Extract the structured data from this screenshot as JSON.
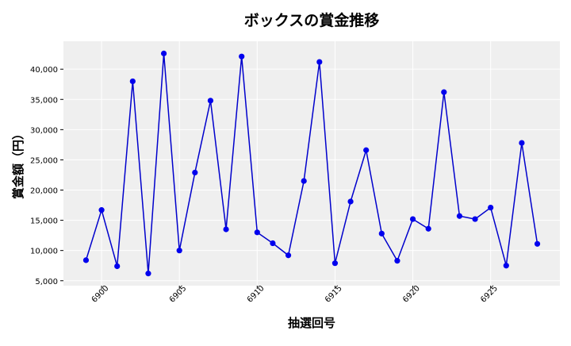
{
  "chart_data": {
    "type": "line",
    "title": "ボックスの賞金推移",
    "xlabel": "抽選回号",
    "ylabel": "賞金額（円）",
    "x": [
      6899,
      6900,
      6901,
      6902,
      6903,
      6904,
      6905,
      6906,
      6907,
      6908,
      6909,
      6910,
      6911,
      6912,
      6913,
      6914,
      6915,
      6916,
      6917,
      6918,
      6919,
      6920,
      6921,
      6922,
      6923,
      6924,
      6925,
      6926,
      6927,
      6928
    ],
    "series": [
      {
        "values": [
          8400,
          16700,
          7400,
          38000,
          6200,
          42600,
          10000,
          22900,
          34800,
          13500,
          42100,
          13000,
          11200,
          9200,
          21500,
          41200,
          7900,
          18100,
          26600,
          12800,
          8300,
          15200,
          13600,
          36200,
          15700,
          15200,
          17100,
          7500,
          27800,
          11100
        ]
      }
    ],
    "xticks": [
      6900,
      6905,
      6910,
      6915,
      6920,
      6925
    ],
    "xtick_labels": [
      "6900",
      "6905",
      "6910",
      "6915",
      "6920",
      "6925"
    ],
    "yticks": [
      5000,
      10000,
      15000,
      20000,
      25000,
      30000,
      35000,
      40000
    ],
    "ytick_labels": [
      "5,000",
      "10,000",
      "15,000",
      "20,000",
      "25,000",
      "30,000",
      "35,000",
      "40,000"
    ],
    "xlim": [
      6897.55,
      6929.45
    ],
    "ylim": [
      4180,
      44620
    ],
    "grid": true,
    "colors": {
      "line": "#0000cc",
      "marker": "#0000ee",
      "plot_bg": "#efefef",
      "grid": "#ffffff"
    }
  }
}
